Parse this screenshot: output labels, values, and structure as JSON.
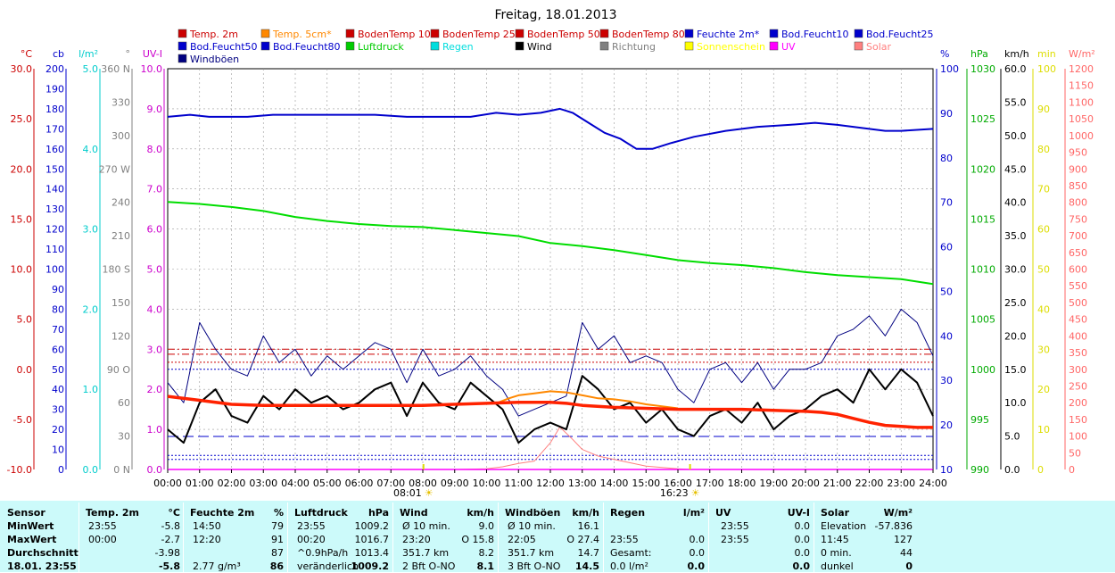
{
  "chart_data": {
    "type": "line",
    "title": "Freitag, 18.01.2013",
    "legend": [
      {
        "name": "Temp. 2m",
        "color": "#cc0000"
      },
      {
        "name": "Temp. 5cm*",
        "color": "#ff8800"
      },
      {
        "name": "BodenTemp 10",
        "color": "#cc0000"
      },
      {
        "name": "BodenTemp 25",
        "color": "#cc0000"
      },
      {
        "name": "BodenTemp 50",
        "color": "#cc0000"
      },
      {
        "name": "BodenTemp 80",
        "color": "#cc0000"
      },
      {
        "name": "Feuchte 2m*",
        "color": "#0000cc"
      },
      {
        "name": "Bod.Feucht10",
        "color": "#0000cc"
      },
      {
        "name": "Bod.Feucht25",
        "color": "#0000cc"
      },
      {
        "name": "Bod.Feucht50",
        "color": "#0000cc"
      },
      {
        "name": "Bod.Feucht80",
        "color": "#0000cc"
      },
      {
        "name": "Luftdruck",
        "color": "#00cc00"
      },
      {
        "name": "Regen",
        "color": "#00dddd"
      },
      {
        "name": "Wind",
        "color": "#000000"
      },
      {
        "name": "Richtung",
        "color": "#808080"
      },
      {
        "name": "Sonnenschein",
        "color": "#ffff00"
      },
      {
        "name": "UV",
        "color": "#ff00ff"
      },
      {
        "name": "Solar",
        "color": "#ff8080"
      },
      {
        "name": "Windböen",
        "color": "#000080"
      }
    ],
    "axes": [
      {
        "unit": "°C",
        "color": "#cc0000",
        "ticks": [
          "30.0",
          "25.0",
          "20.0",
          "15.0",
          "10.0",
          "5.0",
          "0.0",
          "-5.0",
          "-10.0"
        ],
        "ylim": [
          -10,
          30
        ]
      },
      {
        "unit": "cb",
        "color": "#0000cc",
        "ticks": [
          "200",
          "190",
          "180",
          "170",
          "160",
          "150",
          "140",
          "130",
          "120",
          "110",
          "100",
          "90",
          "80",
          "70",
          "60",
          "50",
          "40",
          "30",
          "20",
          "10",
          "0"
        ],
        "ylim": [
          0,
          200
        ]
      },
      {
        "unit": "l/m²",
        "color": "#00cccc",
        "ticks": [
          "5.0",
          "4.0",
          "3.0",
          "2.0",
          "1.0",
          "0.0"
        ],
        "ylim": [
          0,
          5
        ]
      },
      {
        "unit": "°",
        "color": "#808080",
        "ticks": [
          "360 N",
          "330",
          "300",
          "270 W",
          "240",
          "210",
          "180 S",
          "150",
          "120",
          "90 O",
          "60",
          "30",
          "0 N"
        ],
        "ylim": [
          0,
          360
        ]
      },
      {
        "unit": "UV-I",
        "color": "#cc00cc",
        "ticks": [
          "10.0",
          "9.0",
          "8.0",
          "7.0",
          "6.0",
          "5.0",
          "4.0",
          "3.0",
          "2.0",
          "1.0",
          "0.0"
        ],
        "ylim": [
          0,
          10
        ]
      },
      {
        "unit": "%",
        "color": "#0000cc",
        "ticks": [
          "100",
          "90",
          "80",
          "70",
          "60",
          "50",
          "40",
          "30",
          "20",
          "10"
        ],
        "ylim": [
          0,
          100
        ]
      },
      {
        "unit": "hPa",
        "color": "#00aa00",
        "ticks": [
          "1030",
          "1025",
          "1020",
          "1015",
          "1010",
          "1005",
          "1000",
          "995",
          "990"
        ],
        "ylim": [
          990,
          1030
        ]
      },
      {
        "unit": "km/h",
        "color": "#000000",
        "ticks": [
          "60.0",
          "55.0",
          "50.0",
          "45.0",
          "40.0",
          "35.0",
          "30.0",
          "25.0",
          "20.0",
          "15.0",
          "10.0",
          "5.0",
          "0.0"
        ],
        "ylim": [
          0,
          60
        ]
      },
      {
        "unit": "min",
        "color": "#dddd00",
        "ticks": [
          "100",
          "90",
          "80",
          "70",
          "60",
          "50",
          "40",
          "30",
          "20",
          "10",
          "0"
        ],
        "ylim": [
          0,
          100
        ]
      },
      {
        "unit": "W/m²",
        "color": "#ff6666",
        "ticks": [
          "1200",
          "1150",
          "1100",
          "1050",
          "1000",
          "950",
          "900",
          "850",
          "800",
          "750",
          "700",
          "650",
          "600",
          "550",
          "500",
          "450",
          "400",
          "350",
          "300",
          "250",
          "200",
          "150",
          "100",
          "50",
          "0"
        ],
        "ylim": [
          0,
          1200
        ]
      }
    ],
    "x_ticks": [
      "00:00",
      "01:00",
      "02:00",
      "03:00",
      "04:00",
      "05:00",
      "06:00",
      "07:00",
      "08:00",
      "09:00",
      "10:00",
      "11:00",
      "12:00",
      "13:00",
      "14:00",
      "15:00",
      "16:00",
      "17:00",
      "18:00",
      "19:00",
      "20:00",
      "21:00",
      "22:00",
      "23:00",
      "24:00"
    ],
    "sun_markers": [
      {
        "label": "08:01",
        "hour": 8.02
      },
      {
        "label": "16:23",
        "hour": 16.38
      }
    ],
    "series": {
      "humidity_pct": {
        "name": "Feuchte 2m*",
        "x": [
          0,
          0.7,
          1.3,
          2.5,
          3.3,
          4.5,
          5.5,
          6.5,
          7.5,
          8.5,
          9.5,
          10.3,
          11,
          11.7,
          12.3,
          12.7,
          13.2,
          13.7,
          14.2,
          14.7,
          15.2,
          15.8,
          16.5,
          17.5,
          18.5,
          19.5,
          20.3,
          21,
          21.5,
          22.5,
          23,
          24
        ],
        "values": [
          88,
          88.5,
          88,
          88,
          88.5,
          88.5,
          88.5,
          88.5,
          88,
          88,
          88,
          89,
          88.5,
          89,
          90,
          89,
          86.5,
          84,
          82.5,
          80,
          80,
          81.5,
          83,
          84.5,
          85.5,
          86,
          86.5,
          86,
          85.5,
          84.5,
          84.5,
          85
        ]
      },
      "pressure_hpa": {
        "name": "Luftdruck",
        "x": [
          0,
          1,
          2,
          3,
          4,
          5,
          6,
          7,
          8,
          9,
          10,
          11,
          12,
          13,
          14,
          15,
          16,
          17,
          18,
          19,
          20,
          21,
          22,
          23,
          24
        ],
        "values": [
          1016.7,
          1016.5,
          1016.2,
          1015.8,
          1015.2,
          1014.8,
          1014.5,
          1014.3,
          1014.2,
          1013.9,
          1013.6,
          1013.3,
          1012.6,
          1012.3,
          1011.9,
          1011.4,
          1010.9,
          1010.6,
          1010.4,
          1010.1,
          1009.7,
          1009.4,
          1009.2,
          1009.0,
          1008.5
        ]
      },
      "temp_2m_c": {
        "name": "Temp. 2m",
        "x": [
          0,
          1,
          2,
          3,
          4,
          5,
          6,
          7,
          8,
          9,
          10,
          11,
          12,
          12.5,
          13,
          14,
          15,
          16,
          17,
          18,
          19,
          20,
          20.5,
          21,
          21.5,
          22,
          22.5,
          23,
          23.5,
          24
        ],
        "values": [
          -2.7,
          -3.1,
          -3.5,
          -3.6,
          -3.6,
          -3.6,
          -3.6,
          -3.6,
          -3.6,
          -3.5,
          -3.4,
          -3.3,
          -3.3,
          -3.4,
          -3.6,
          -3.8,
          -3.9,
          -4.0,
          -4.0,
          -4.0,
          -4.1,
          -4.2,
          -4.3,
          -4.5,
          -4.9,
          -5.3,
          -5.6,
          -5.7,
          -5.8,
          -5.8
        ]
      },
      "temp_5cm_c": {
        "name": "Temp. 5cm*",
        "x": [
          10.3,
          10.7,
          11,
          11.5,
          12,
          12.5,
          13,
          13.5,
          14,
          14.5,
          15,
          15.5,
          16
        ],
        "values": [
          -3.4,
          -2.9,
          -2.6,
          -2.4,
          -2.2,
          -2.3,
          -2.6,
          -2.9,
          -3.0,
          -3.2,
          -3.5,
          -3.7,
          -3.9
        ]
      },
      "wind_kmh": {
        "name": "Wind",
        "x": [
          0,
          0.5,
          1,
          1.5,
          2,
          2.5,
          3,
          3.5,
          4,
          4.5,
          5,
          5.5,
          6,
          6.5,
          7,
          7.5,
          8,
          8.5,
          9,
          9.5,
          10,
          10.5,
          11,
          11.5,
          12,
          12.5,
          13,
          13.5,
          14,
          14.5,
          15,
          15.5,
          16,
          16.5,
          17,
          17.5,
          18,
          18.5,
          19,
          19.5,
          20,
          20.5,
          21,
          21.5,
          22,
          22.5,
          23,
          23.5,
          24
        ],
        "values": [
          6,
          4,
          10,
          12,
          8,
          7,
          11,
          9,
          12,
          10,
          11,
          9,
          10,
          12,
          13,
          8,
          13,
          10,
          9,
          13,
          11,
          9,
          4,
          6,
          7,
          6,
          14,
          12,
          9,
          10,
          7,
          9,
          6,
          5,
          8,
          9,
          7,
          10,
          6,
          8,
          9,
          11,
          12,
          10,
          15,
          12,
          15,
          13,
          8
        ]
      },
      "gust_kmh": {
        "name": "Windböen",
        "x": [
          0,
          0.5,
          1,
          1.5,
          2,
          2.5,
          3,
          3.5,
          4,
          4.5,
          5,
          5.5,
          6,
          6.5,
          7,
          7.5,
          8,
          8.5,
          9,
          9.5,
          10,
          10.5,
          11,
          11.5,
          12,
          12.5,
          13,
          13.5,
          14,
          14.5,
          15,
          15.5,
          16,
          16.5,
          17,
          17.5,
          18,
          18.5,
          19,
          19.5,
          20,
          20.5,
          21,
          21.5,
          22,
          22.5,
          23,
          23.5,
          24
        ],
        "values": [
          13,
          10,
          22,
          18,
          15,
          14,
          20,
          16,
          18,
          14,
          17,
          15,
          17,
          19,
          18,
          13,
          18,
          14,
          15,
          17,
          14,
          12,
          8,
          9,
          10,
          11,
          22,
          18,
          20,
          16,
          17,
          16,
          12,
          10,
          15,
          16,
          13,
          16,
          12,
          15,
          15,
          16,
          20,
          21,
          23,
          20,
          24,
          22,
          17
        ]
      },
      "solar_wm2": {
        "name": "Solar",
        "x": [
          8,
          9,
          10,
          10.5,
          11,
          11.5,
          12,
          12.3,
          12.7,
          13,
          13.5,
          14,
          15,
          16,
          16.4
        ],
        "values": [
          0,
          0,
          2,
          8,
          18,
          25,
          80,
          127,
          90,
          60,
          40,
          30,
          10,
          2,
          0
        ]
      },
      "uv_index": {
        "name": "UV",
        "x": [
          0,
          24
        ],
        "values": [
          0,
          0
        ]
      }
    },
    "reference_lines": [
      {
        "axis": "temp_c",
        "value": 2.0,
        "color": "#cc0000",
        "style": "dashdot"
      },
      {
        "axis": "temp_c",
        "value": 1.5,
        "color": "#cc0000",
        "style": "dashdot"
      },
      {
        "axis": "temp_c",
        "value": 0.7,
        "color": "#cc0000",
        "style": "dotted"
      },
      {
        "axis": "hpa",
        "value": 1000,
        "color": "#0000cc",
        "style": "dotted"
      },
      {
        "axis": "hpa",
        "value": 993.3,
        "color": "#0000cc",
        "style": "dashed"
      },
      {
        "axis": "hpa",
        "value": 991.4,
        "color": "#0000cc",
        "style": "dotted"
      },
      {
        "axis": "hpa",
        "value": 991.0,
        "color": "#0000cc",
        "style": "dotted"
      }
    ],
    "grid": true
  },
  "table": {
    "columns": [
      {
        "key": "sensor",
        "header": "Sensor"
      },
      {
        "key": "temp",
        "header": "Temp. 2m",
        "unit": "°C"
      },
      {
        "key": "hum",
        "header": "Feuchte 2m",
        "unit": "%"
      },
      {
        "key": "press",
        "header": "Luftdruck",
        "unit": "hPa"
      },
      {
        "key": "wind",
        "header": "Wind",
        "unit": "km/h"
      },
      {
        "key": "gust",
        "header": "Windböen",
        "unit": "km/h"
      },
      {
        "key": "rain",
        "header": "Regen",
        "unit": "l/m²"
      },
      {
        "key": "uv",
        "header": "UV",
        "unit": "UV-I"
      },
      {
        "key": "solar",
        "header": "Solar",
        "unit": "W/m²"
      }
    ],
    "rows": [
      {
        "label": "MinWert",
        "temp": [
          "23:55",
          "-5.8"
        ],
        "hum": [
          "14:50",
          "79"
        ],
        "press": [
          "23:55",
          "1009.2"
        ],
        "wind": [
          "Ø 10 min.",
          "9.0"
        ],
        "gust": [
          "Ø 10 min.",
          "16.1"
        ],
        "rain": [
          "",
          ""
        ],
        "uv": [
          "23:55",
          "0.0"
        ],
        "solar": [
          "Elevation",
          "-57.836"
        ]
      },
      {
        "label": "MaxWert",
        "temp": [
          "00:00",
          "-2.7"
        ],
        "hum": [
          "12:20",
          "91"
        ],
        "press": [
          "00:20",
          "1016.7"
        ],
        "wind": [
          "23:20",
          "O 15.8"
        ],
        "gust": [
          "22:05",
          "O 27.4"
        ],
        "rain": [
          "23:55",
          "0.0"
        ],
        "uv": [
          "23:55",
          "0.0"
        ],
        "solar": [
          "11:45",
          "127"
        ]
      },
      {
        "label": "Durchschnitt",
        "temp": [
          "",
          "-3.98"
        ],
        "hum": [
          "",
          "87"
        ],
        "press": [
          "^0.9hPa/h",
          "1013.4"
        ],
        "wind": [
          "351.7 km",
          "8.2"
        ],
        "gust": [
          "351.7 km",
          "14.7"
        ],
        "rain": [
          "Gesamt:",
          "0.0"
        ],
        "uv": [
          "",
          "0.0"
        ],
        "solar": [
          "0 min.",
          "44"
        ]
      },
      {
        "label": "18.01. 23:55",
        "temp": [
          "",
          "-5.8"
        ],
        "hum": [
          "2.77 g/m³",
          "86"
        ],
        "press": [
          "veränderlich",
          "1009.2"
        ],
        "wind": [
          "2 Bft O-NO",
          "8.1"
        ],
        "gust": [
          "3 Bft O-NO",
          "14.5"
        ],
        "rain": [
          "0.0 l/m²",
          "0.0"
        ],
        "uv": [
          "",
          "0.0"
        ],
        "solar": [
          "dunkel",
          "0"
        ]
      }
    ]
  }
}
